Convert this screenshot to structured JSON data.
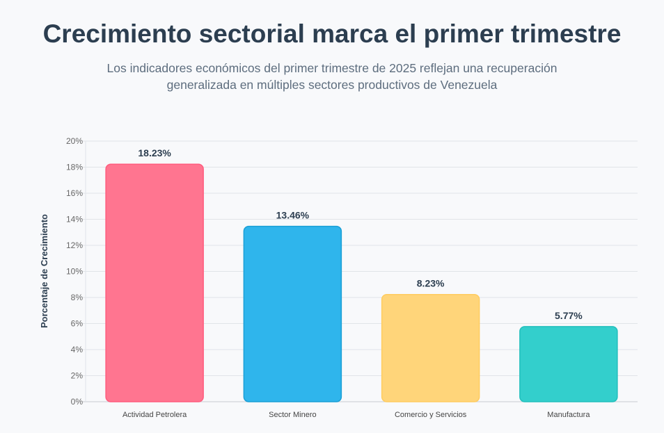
{
  "header": {
    "title": "Crecimiento sectorial marca el primer trimestre",
    "subtitle": "Los indicadores económicos del primer trimestre de 2025 reflejan una recuperación generalizada en múltiples sectores productivos de Venezuela"
  },
  "chart_data": {
    "type": "bar",
    "categories": [
      "Actividad Petrolera",
      "Sector Minero",
      "Comercio y Servicios",
      "Manufactura"
    ],
    "values": [
      18.23,
      13.46,
      8.23,
      5.77
    ],
    "data_labels": [
      "18.23%",
      "13.46%",
      "8.23%",
      "5.77%"
    ],
    "colors": [
      "#ff7590",
      "#2fb5ec",
      "#ffd57a",
      "#33cfcc"
    ],
    "border_colors": [
      "#ff5c7e",
      "#1a9fd6",
      "#ffcc60",
      "#22bfbc"
    ],
    "ylabel": "Porcentaje de Crecimiento",
    "xlabel": "",
    "ylim": [
      0,
      20
    ],
    "yticks": [
      "0%",
      "2%",
      "4%",
      "6%",
      "8%",
      "10%",
      "12%",
      "14%",
      "16%",
      "18%",
      "20%"
    ],
    "grid": true,
    "legend": "none"
  }
}
